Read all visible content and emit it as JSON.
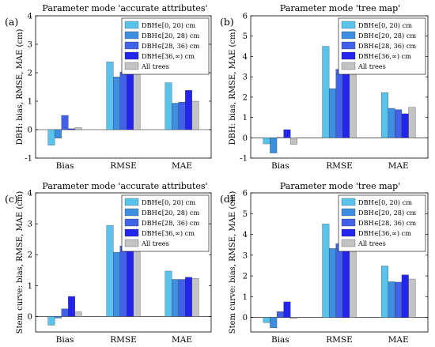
{
  "figure": {
    "panels": [
      {
        "letter": "(a)",
        "title": "Parameter mode 'accurate attributes'",
        "ylabel": "DBH: bias, RMSE, MAE (cm)"
      },
      {
        "letter": "(b)",
        "title": "Parameter mode 'tree map'",
        "ylabel": "DBH: bias, RMSE, MAE (cm)"
      },
      {
        "letter": "(c)",
        "title": "Parameter mode 'accurate attributes'",
        "ylabel": "Stem curve: bias, RMSE, MAE (cm)"
      },
      {
        "letter": "(d)",
        "title": "Parameter mode 'tree map'",
        "ylabel": "Stem curve: bias, RMSE, MAE (cm)"
      }
    ]
  },
  "colors": {
    "series": [
      "#59c3ec",
      "#3e8fe0",
      "#4162e8",
      "#2424ef",
      "#c3c3c3"
    ]
  },
  "chart_data": [
    {
      "type": "bar",
      "title": "Parameter mode 'accurate attributes'",
      "ylabel": "DBH: bias, RMSE, MAE (cm)",
      "xlabel": "",
      "categories": [
        "Bias",
        "RMSE",
        "MAE"
      ],
      "ylim": [
        -1,
        4
      ],
      "yticks": [
        -1,
        0,
        1,
        2,
        3,
        4
      ],
      "legend_position": "top-right",
      "series": [
        {
          "name": "DBH∈[0, 20) cm",
          "values": [
            -0.55,
            2.38,
            1.65
          ]
        },
        {
          "name": "DBH∈[20, 28) cm",
          "values": [
            -0.3,
            1.85,
            0.93
          ]
        },
        {
          "name": "DBH∈[28, 36) cm",
          "values": [
            0.5,
            2.02,
            0.97
          ]
        },
        {
          "name": "DBH∈[36,∞) cm",
          "values": [
            0.03,
            3.0,
            1.38
          ]
        },
        {
          "name": "All trees",
          "values": [
            0.07,
            2.1,
            1.0
          ]
        }
      ]
    },
    {
      "type": "bar",
      "title": "Parameter mode 'tree map'",
      "ylabel": "DBH: bias, RMSE, MAE (cm)",
      "xlabel": "",
      "categories": [
        "Bias",
        "RMSE",
        "MAE"
      ],
      "ylim": [
        -1,
        6
      ],
      "yticks": [
        -1,
        0,
        1,
        2,
        3,
        4,
        5,
        6
      ],
      "legend_position": "top-right",
      "series": [
        {
          "name": "DBH∈[0, 20) cm",
          "values": [
            -0.3,
            4.5,
            2.22
          ]
        },
        {
          "name": "DBH∈[20, 28) cm",
          "values": [
            -0.75,
            2.42,
            1.45
          ]
        },
        {
          "name": "DBH∈[28, 36) cm",
          "values": [
            0.02,
            3.37,
            1.38
          ]
        },
        {
          "name": "DBH∈[36,∞) cm",
          "values": [
            0.4,
            3.33,
            1.18
          ]
        },
        {
          "name": "All trees",
          "values": [
            -0.32,
            3.23,
            1.5
          ]
        }
      ]
    },
    {
      "type": "bar",
      "title": "Parameter mode 'accurate attributes'",
      "ylabel": "Stem curve: bias, RMSE, MAE (cm)",
      "xlabel": "",
      "categories": [
        "Bias",
        "RMSE",
        "MAE"
      ],
      "ylim": [
        -0.5,
        4
      ],
      "yticks": [
        0,
        1,
        2,
        3,
        4
      ],
      "legend_position": "top-right",
      "series": [
        {
          "name": "DBH∈[0, 20) cm",
          "values": [
            -0.28,
            2.95,
            1.47
          ]
        },
        {
          "name": "DBH∈[20, 28) cm",
          "values": [
            -0.05,
            2.08,
            1.2
          ]
        },
        {
          "name": "DBH∈[28, 36) cm",
          "values": [
            0.25,
            2.28,
            1.2
          ]
        },
        {
          "name": "DBH∈[36,∞) cm",
          "values": [
            0.65,
            3.08,
            1.27
          ]
        },
        {
          "name": "All trees",
          "values": [
            0.15,
            2.35,
            1.23
          ]
        }
      ]
    },
    {
      "type": "bar",
      "title": "Parameter mode 'tree map'",
      "ylabel": "Stem curve: bias, RMSE, MAE (cm)",
      "xlabel": "",
      "categories": [
        "Bias",
        "RMSE",
        "MAE"
      ],
      "ylim": [
        -0.7,
        6
      ],
      "yticks": [
        0,
        1,
        2,
        3,
        4,
        5,
        6
      ],
      "legend_position": "top-right",
      "series": [
        {
          "name": "DBH∈[0, 20) cm",
          "values": [
            -0.25,
            4.5,
            2.48
          ]
        },
        {
          "name": "DBH∈[20, 28) cm",
          "values": [
            -0.5,
            3.32,
            1.72
          ]
        },
        {
          "name": "DBH∈[28, 36) cm",
          "values": [
            0.28,
            3.55,
            1.7
          ]
        },
        {
          "name": "DBH∈[36,∞) cm",
          "values": [
            0.75,
            3.68,
            2.05
          ]
        },
        {
          "name": "All trees",
          "values": [
            -0.05,
            3.65,
            1.85
          ]
        }
      ]
    }
  ]
}
